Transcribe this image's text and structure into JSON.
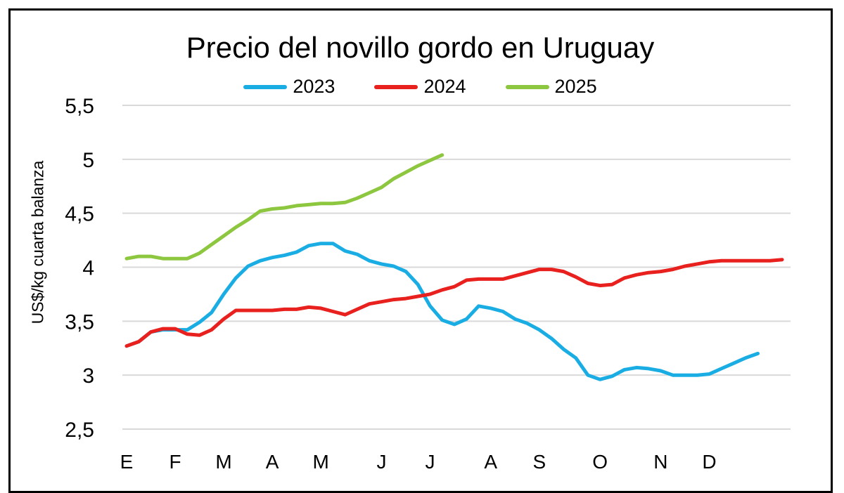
{
  "chart_data": {
    "type": "line",
    "title": "Precio del novillo gordo en Uruguay",
    "ylabel": "US$/kg cuarta balanza",
    "xlabel": "",
    "ylim": [
      2.5,
      5.5
    ],
    "yticks": [
      "2,5",
      "3",
      "3,5",
      "4",
      "4,5",
      "5",
      "5,5"
    ],
    "ytick_values": [
      2.5,
      3,
      3.5,
      4,
      4.5,
      5,
      5.5
    ],
    "xticks": [
      {
        "label": "E",
        "week": 1
      },
      {
        "label": "F",
        "week": 5
      },
      {
        "label": "M",
        "week": 9
      },
      {
        "label": "A",
        "week": 13
      },
      {
        "label": "M",
        "week": 17
      },
      {
        "label": "J",
        "week": 22
      },
      {
        "label": "J",
        "week": 26
      },
      {
        "label": "A",
        "week": 31
      },
      {
        "label": "S",
        "week": 35
      },
      {
        "label": "O",
        "week": 40
      },
      {
        "label": "N",
        "week": 45
      },
      {
        "label": "D",
        "week": 49
      }
    ],
    "xlim": [
      1,
      55
    ],
    "grid": true,
    "legend": "top",
    "series": [
      {
        "name": "2023",
        "color": "#1AADE4",
        "x": [
          1,
          2,
          3,
          4,
          5,
          6,
          7,
          8,
          9,
          10,
          11,
          12,
          13,
          14,
          15,
          16,
          17,
          18,
          19,
          20,
          21,
          22,
          23,
          24,
          25,
          26,
          27,
          28,
          29,
          30,
          31,
          32,
          33,
          34,
          35,
          36,
          37,
          38,
          39,
          40,
          41,
          42,
          43,
          44,
          45,
          46,
          47,
          48,
          49,
          50,
          51,
          52,
          53
        ],
        "y": [
          3.27,
          3.31,
          3.4,
          3.42,
          3.42,
          3.42,
          3.49,
          3.58,
          3.75,
          3.9,
          4.01,
          4.06,
          4.09,
          4.11,
          4.14,
          4.2,
          4.22,
          4.22,
          4.15,
          4.12,
          4.06,
          4.03,
          4.01,
          3.96,
          3.84,
          3.64,
          3.51,
          3.47,
          3.52,
          3.64,
          3.62,
          3.59,
          3.52,
          3.48,
          3.42,
          3.34,
          3.24,
          3.16,
          3.0,
          2.96,
          2.99,
          3.05,
          3.07,
          3.06,
          3.04,
          3.0,
          3.0,
          3.0,
          3.01,
          3.06,
          3.11,
          3.16,
          3.2
        ]
      },
      {
        "name": "2024",
        "color": "#E8201E",
        "x": [
          1,
          2,
          3,
          4,
          5,
          6,
          7,
          8,
          9,
          10,
          11,
          12,
          13,
          14,
          15,
          16,
          17,
          18,
          19,
          20,
          21,
          22,
          23,
          24,
          25,
          26,
          27,
          28,
          29,
          30,
          31,
          32,
          33,
          34,
          35,
          36,
          37,
          38,
          39,
          40,
          41,
          42,
          43,
          44,
          45,
          46,
          47,
          48,
          49,
          50,
          51,
          52,
          53,
          54,
          55
        ],
        "y": [
          3.27,
          3.31,
          3.4,
          3.43,
          3.43,
          3.38,
          3.37,
          3.42,
          3.52,
          3.6,
          3.6,
          3.6,
          3.6,
          3.61,
          3.61,
          3.63,
          3.62,
          3.59,
          3.56,
          3.61,
          3.66,
          3.68,
          3.7,
          3.71,
          3.73,
          3.75,
          3.79,
          3.82,
          3.88,
          3.89,
          3.89,
          3.89,
          3.92,
          3.95,
          3.98,
          3.98,
          3.96,
          3.91,
          3.85,
          3.83,
          3.84,
          3.9,
          3.93,
          3.95,
          3.96,
          3.98,
          4.01,
          4.03,
          4.05,
          4.06,
          4.06,
          4.06,
          4.06,
          4.06,
          4.07
        ]
      },
      {
        "name": "2025",
        "color": "#8DC63F",
        "x": [
          1,
          2,
          3,
          4,
          5,
          6,
          7,
          8,
          9,
          10,
          11,
          12,
          13,
          14,
          15,
          16,
          17,
          18,
          19,
          20,
          21,
          22,
          23,
          24,
          25,
          26,
          27
        ],
        "y": [
          4.08,
          4.1,
          4.1,
          4.08,
          4.08,
          4.08,
          4.13,
          4.21,
          4.29,
          4.37,
          4.44,
          4.52,
          4.54,
          4.55,
          4.57,
          4.58,
          4.59,
          4.59,
          4.6,
          4.64,
          4.69,
          4.74,
          4.82,
          4.88,
          4.94,
          4.99,
          5.04
        ]
      }
    ]
  }
}
